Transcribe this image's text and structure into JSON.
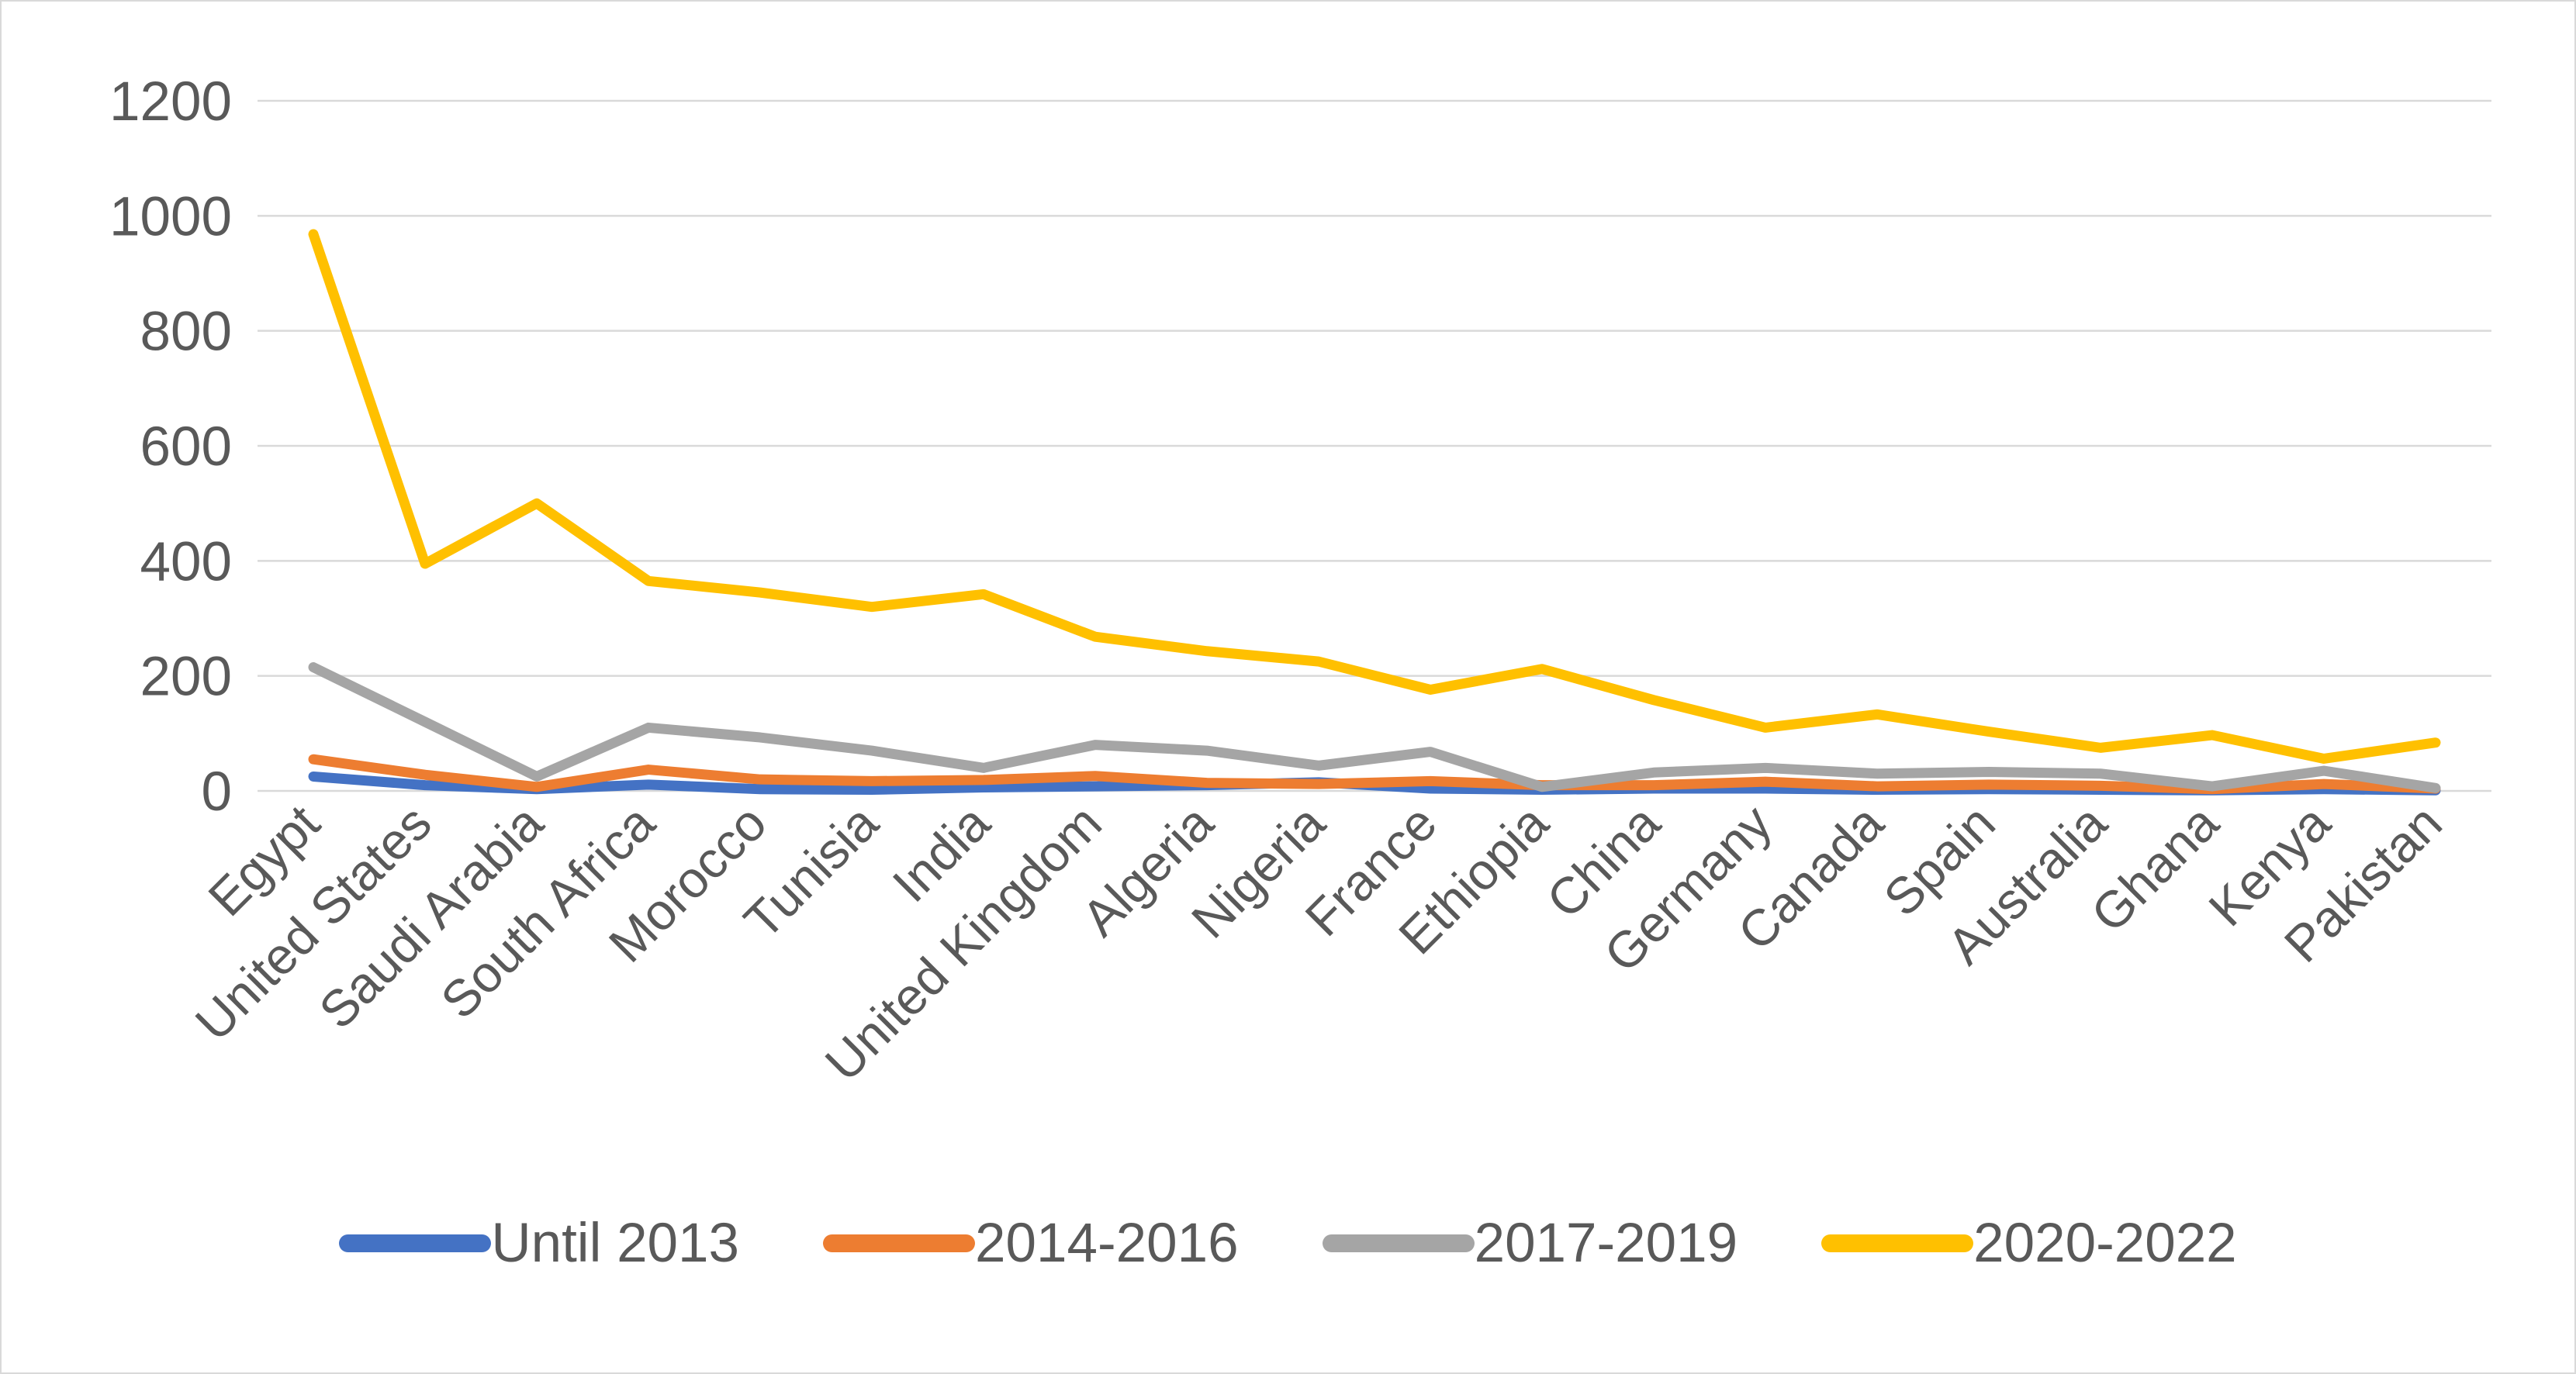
{
  "chart_data": {
    "type": "line",
    "title": "",
    "xlabel": "",
    "ylabel": "",
    "categories": [
      "Egypt",
      "United States",
      "Saudi Arabia",
      "South Africa",
      "Morocco",
      "Tunisia",
      "India",
      "United Kingdom",
      "Algeria",
      "Nigeria",
      "France",
      "Ethiopia",
      "China",
      "Germany",
      "Canada",
      "Spain",
      "Australia",
      "Ghana",
      "Kenya",
      "Pakistan"
    ],
    "series": [
      {
        "name": "Until 2013",
        "color": "#4472C4",
        "values": [
          25,
          10,
          3,
          11,
          3,
          2,
          6,
          8,
          10,
          15,
          4,
          2,
          4,
          4,
          2,
          3,
          2,
          1,
          3,
          1
        ]
      },
      {
        "name": "2014-2016",
        "color": "#ED7D31",
        "values": [
          55,
          28,
          7,
          37,
          20,
          17,
          19,
          26,
          14,
          12,
          17,
          10,
          10,
          16,
          8,
          11,
          9,
          3,
          12,
          4
        ]
      },
      {
        "name": "2017-2019",
        "color": "#A5A5A5",
        "values": [
          215,
          120,
          25,
          110,
          93,
          70,
          40,
          80,
          70,
          44,
          68,
          7,
          32,
          40,
          30,
          33,
          30,
          8,
          35,
          5
        ]
      },
      {
        "name": "2020-2022",
        "color": "#FFC000",
        "values": [
          968,
          395,
          500,
          365,
          345,
          320,
          342,
          268,
          243,
          225,
          176,
          212,
          158,
          110,
          133,
          103,
          75,
          97,
          56,
          84
        ]
      }
    ],
    "y_ticks": [
      0,
      200,
      400,
      600,
      800,
      1000,
      1200
    ],
    "ylim": [
      0,
      1200
    ],
    "grid": true,
    "legend_position": "bottom",
    "x_label_rotation_deg": 45,
    "axis_text_color": "#595959",
    "gridline_color": "#D9D9D9",
    "background_color": "#FFFFFF",
    "border_color": "#D9D9D9"
  }
}
